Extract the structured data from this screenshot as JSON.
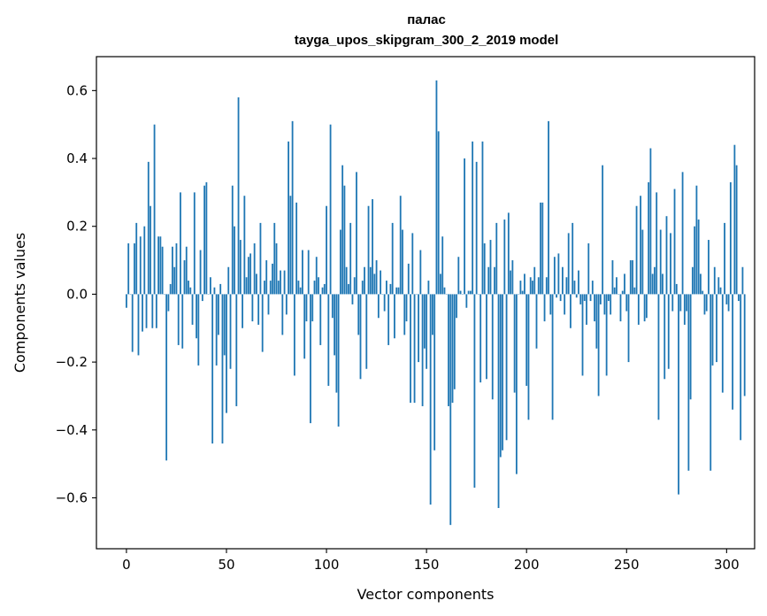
{
  "chart_data": {
    "type": "bar",
    "title": "палас",
    "subtitle": "tayga_upos_skipgram_300_2_2019 model",
    "xlabel": "Vector components",
    "ylabel": "Components values",
    "xlim": [
      -15,
      314
    ],
    "ylim": [
      -0.75,
      0.7
    ],
    "xticks": [
      0,
      50,
      100,
      150,
      200,
      250,
      300
    ],
    "xtick_labels": [
      "0",
      "50",
      "100",
      "150",
      "200",
      "250",
      "300"
    ],
    "yticks": [
      -0.6,
      -0.4,
      -0.2,
      0.0,
      0.2,
      0.4,
      0.6
    ],
    "ytick_labels": [
      "−0.6",
      "−0.4",
      "−0.2",
      "0.0",
      "0.2",
      "0.4",
      "0.6"
    ],
    "bar_color": "#1f77b4",
    "grid": false,
    "values": [
      -0.04,
      0.15,
      0.0,
      -0.17,
      0.15,
      0.21,
      -0.18,
      0.17,
      -0.11,
      0.2,
      -0.1,
      0.39,
      0.26,
      -0.1,
      0.5,
      -0.1,
      0.17,
      0.17,
      0.14,
      0.0,
      -0.49,
      -0.05,
      0.03,
      0.14,
      0.08,
      0.15,
      -0.15,
      0.3,
      -0.16,
      0.1,
      0.14,
      0.04,
      0.02,
      -0.09,
      0.3,
      -0.13,
      -0.21,
      0.13,
      -0.02,
      0.32,
      0.33,
      0.0,
      0.05,
      -0.44,
      0.02,
      -0.21,
      -0.12,
      0.03,
      -0.44,
      -0.18,
      -0.35,
      0.08,
      -0.22,
      0.32,
      0.2,
      -0.33,
      0.58,
      0.16,
      -0.1,
      0.29,
      0.05,
      0.11,
      0.12,
      -0.08,
      0.15,
      0.06,
      -0.09,
      0.21,
      -0.17,
      0.04,
      0.1,
      -0.06,
      0.04,
      0.09,
      0.21,
      0.15,
      0.04,
      0.07,
      -0.12,
      0.07,
      -0.06,
      0.45,
      0.29,
      0.51,
      -0.24,
      0.27,
      0.04,
      0.02,
      0.13,
      -0.19,
      -0.08,
      0.13,
      -0.38,
      -0.08,
      0.04,
      0.11,
      0.05,
      -0.15,
      0.02,
      0.03,
      0.26,
      -0.27,
      0.5,
      -0.07,
      -0.18,
      -0.29,
      -0.39,
      0.19,
      0.38,
      0.32,
      0.08,
      0.03,
      0.21,
      -0.03,
      0.05,
      0.36,
      -0.12,
      -0.25,
      0.04,
      0.08,
      -0.22,
      0.26,
      0.08,
      0.28,
      0.06,
      0.1,
      -0.07,
      0.07,
      0.0,
      -0.05,
      0.04,
      -0.15,
      0.03,
      0.21,
      -0.13,
      0.02,
      0.02,
      0.29,
      0.19,
      -0.12,
      -0.08,
      0.09,
      -0.32,
      0.18,
      -0.32,
      0.0,
      -0.2,
      0.13,
      -0.33,
      -0.16,
      -0.22,
      0.04,
      -0.62,
      -0.12,
      -0.46,
      0.63,
      0.48,
      0.06,
      0.17,
      0.02,
      0.0,
      -0.33,
      -0.68,
      -0.32,
      -0.28,
      -0.07,
      0.11,
      0.01,
      0.0,
      0.4,
      -0.04,
      0.01,
      0.01,
      0.45,
      -0.57,
      0.39,
      0.0,
      -0.26,
      0.45,
      0.15,
      -0.25,
      0.08,
      0.16,
      -0.31,
      0.08,
      0.21,
      -0.63,
      -0.48,
      -0.46,
      0.22,
      -0.43,
      0.24,
      0.07,
      0.1,
      -0.29,
      -0.53,
      0.0,
      0.04,
      0.01,
      0.06,
      -0.27,
      -0.37,
      0.05,
      0.04,
      0.08,
      -0.16,
      0.05,
      0.27,
      0.27,
      -0.08,
      0.05,
      0.51,
      -0.06,
      -0.37,
      0.11,
      -0.01,
      0.12,
      -0.02,
      0.08,
      -0.06,
      0.05,
      0.18,
      -0.1,
      0.21,
      0.04,
      -0.01,
      0.07,
      -0.03,
      -0.24,
      -0.02,
      -0.09,
      0.15,
      -0.02,
      0.04,
      -0.08,
      -0.16,
      -0.3,
      -0.03,
      0.38,
      -0.06,
      -0.24,
      -0.02,
      -0.06,
      0.1,
      0.02,
      0.05,
      0.0,
      -0.08,
      0.01,
      0.06,
      -0.05,
      -0.2,
      0.1,
      0.1,
      0.02,
      0.26,
      -0.09,
      0.29,
      0.19,
      -0.08,
      -0.07,
      0.33,
      0.43,
      0.06,
      0.08,
      0.3,
      -0.37,
      0.19,
      0.06,
      -0.25,
      0.23,
      -0.22,
      0.18,
      -0.05,
      0.31,
      0.03,
      -0.59,
      -0.05,
      0.36,
      -0.09,
      -0.05,
      -0.52,
      -0.31,
      0.08,
      0.2,
      0.32,
      0.22,
      0.06,
      0.01,
      -0.06,
      -0.05,
      0.16,
      -0.52,
      -0.21,
      0.08,
      -0.2,
      0.05,
      0.02,
      -0.29,
      0.21,
      -0.03,
      -0.05,
      0.33,
      -0.34,
      0.44,
      0.38,
      -0.02,
      -0.43,
      0.08,
      -0.3
    ]
  }
}
